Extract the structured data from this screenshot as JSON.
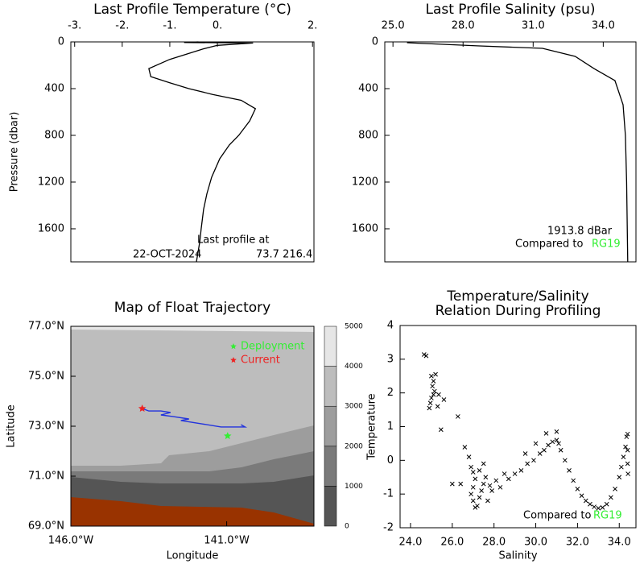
{
  "chart_data": [
    {
      "type": "profile",
      "title": "Last Profile Temperature (°C)",
      "ylabel": "Pressure (dbar)",
      "x_axis_position": "top",
      "color": "#000000",
      "xlim": [
        -3.08,
        2.03
      ],
      "xticks": [
        {
          "value": -3,
          "label": "-3."
        },
        {
          "value": -2,
          "label": "-2."
        },
        {
          "value": -1,
          "label": "-1."
        },
        {
          "value": 0,
          "label": "0."
        },
        {
          "value": 2,
          "label": "2."
        }
      ],
      "ylim": [
        1883,
        0
      ],
      "yticks": [
        0,
        400,
        800,
        1200,
        1600
      ],
      "x": [
        -0.4,
        -0.7,
        0.75,
        0.0,
        -0.3,
        -1.0,
        -1.44,
        -1.4,
        -1.0,
        -0.6,
        -0.1,
        0.5,
        0.8,
        0.68,
        0.45,
        0.25,
        0.05,
        -0.12,
        -0.22,
        -0.29,
        -0.34,
        -0.37,
        -0.44
      ],
      "y": [
        0,
        5,
        10,
        30,
        60,
        150,
        228,
        297,
        350,
        400,
        450,
        500,
        572,
        676,
        800,
        883,
        1000,
        1159,
        1300,
        1434,
        1600,
        1710,
        1883
      ],
      "annotations": [
        {
          "text": "Last profile at"
        },
        {
          "text": "22-OCT-2024"
        },
        {
          "text": "73.7 216.4"
        }
      ]
    },
    {
      "type": "profile",
      "title": "Last Profile Salinity (psu)",
      "x_axis_position": "top",
      "color": "#000000",
      "xlim": [
        24.65,
        35.4
      ],
      "xticks": [
        {
          "value": 25,
          "label": "25.0"
        },
        {
          "value": 28,
          "label": "28.0"
        },
        {
          "value": 31,
          "label": "31.0"
        },
        {
          "value": 34,
          "label": "34.0"
        }
      ],
      "ylim": [
        1883,
        0
      ],
      "yticks": [
        0,
        400,
        800,
        1200,
        1600
      ],
      "x": [
        25.6,
        28.6,
        31.4,
        32.8,
        33.6,
        34.5,
        34.85,
        34.95,
        35.0,
        35.05
      ],
      "y": [
        7,
        34,
        55,
        124,
        228,
        331,
        538,
        800,
        1200,
        1883
      ],
      "annotations": [
        {
          "text": "1913.8 dBar"
        },
        {
          "text": "Compared to"
        },
        {
          "text": "RG19",
          "color": "#33ee33"
        }
      ]
    },
    {
      "type": "map",
      "title": "Map of Float Trajectory",
      "xlabel": "Longitude",
      "ylabel": "Latitude",
      "xlim": [
        -146,
        -138.2
      ],
      "xticks": [
        {
          "value": -146,
          "label": "146.0°W"
        },
        {
          "value": -141,
          "label": "141.0°W"
        }
      ],
      "ylim": [
        69,
        77
      ],
      "yticks": [
        {
          "value": 77,
          "label": "77.0°N"
        },
        {
          "value": 75,
          "label": "75.0°N"
        },
        {
          "value": 73,
          "label": "73.0°N"
        },
        {
          "value": 71,
          "label": "71.0°N"
        },
        {
          "value": 69,
          "label": "69.0°N"
        }
      ],
      "trajectory": {
        "color": "#2233dd",
        "lon": [
          -143.71,
          -143.5,
          -143.11,
          -142.8,
          -143.11,
          -142.73,
          -142.21,
          -142.47,
          -141.82,
          -141.18,
          -140.41,
          -140.54
        ],
        "lat": [
          73.71,
          73.61,
          73.61,
          73.55,
          73.45,
          73.39,
          73.29,
          73.23,
          73.1,
          72.97,
          72.97,
          73.06
        ]
      },
      "markers": [
        {
          "name": "Deployment",
          "color": "#33ee33",
          "lon": -140.97,
          "lat": 72.61
        },
        {
          "name": "Current",
          "color": "#ee2222",
          "lon": -143.71,
          "lat": 73.71
        }
      ],
      "colorbar": {
        "ticks": [
          0,
          1000,
          2000,
          3000,
          4000,
          5000
        ],
        "colors": [
          "#555555",
          "#7a7a7a",
          "#9d9d9d",
          "#bdbdbd",
          "#e6e6e6"
        ]
      }
    },
    {
      "type": "scatter",
      "title": [
        "Temperature/Salinity",
        "Relation During Profiling"
      ],
      "xlabel": "Salinity",
      "ylabel": "Temperature",
      "color": "#000000",
      "xlim": [
        23.5,
        34.8
      ],
      "xticks": [
        {
          "value": 24,
          "label": "24.0"
        },
        {
          "value": 26,
          "label": "26.0"
        },
        {
          "value": 28,
          "label": "28.0"
        },
        {
          "value": 30,
          "label": "30.0"
        },
        {
          "value": 32,
          "label": "32.0"
        },
        {
          "value": 34,
          "label": "34.0"
        }
      ],
      "ylim": [
        -2,
        4
      ],
      "yticks": [
        4,
        3,
        2,
        1,
        0,
        -1,
        -2
      ],
      "x": [
        24.65,
        24.75,
        25.0,
        25.1,
        25.05,
        25.2,
        25.15,
        24.95,
        24.9,
        25.0,
        25.35,
        25.6,
        25.1,
        26.27,
        25.46,
        25.3,
        26.6,
        26.8,
        26.9,
        27.0,
        27.1,
        27.0,
        26.9,
        27.0,
        27.1,
        27.2,
        27.3,
        27.4,
        27.5,
        27.6,
        27.8,
        27.9,
        28.1,
        28.3,
        28.5,
        28.7,
        26.4,
        26.0,
        27.7,
        27.3,
        27.5,
        29.0,
        29.3,
        29.6,
        29.9,
        30.2,
        30.4,
        30.6,
        30.8,
        31.0,
        31.1,
        31.2,
        31.4,
        31.6,
        31.8,
        32.0,
        32.2,
        32.4,
        32.6,
        32.8,
        33.0,
        33.2,
        33.4,
        33.6,
        33.8,
        34.0,
        34.1,
        34.2,
        34.3,
        34.35,
        34.4,
        34.4,
        34.4,
        34.42,
        30.0,
        30.5,
        29.5,
        31.0
      ],
      "y": [
        3.14,
        3.1,
        2.5,
        2.35,
        2.2,
        2.55,
        2.05,
        1.7,
        1.55,
        1.85,
        1.95,
        1.8,
        1.95,
        1.3,
        0.91,
        1.6,
        0.39,
        0.1,
        -0.2,
        -0.35,
        -0.55,
        -0.8,
        -1.0,
        -1.2,
        -1.4,
        -1.35,
        -1.1,
        -0.9,
        -0.7,
        -0.5,
        -0.75,
        -0.9,
        -0.6,
        -0.8,
        -0.4,
        -0.55,
        -0.7,
        -0.7,
        -1.2,
        -0.3,
        -0.1,
        -0.4,
        -0.3,
        -0.1,
        0.0,
        0.2,
        0.3,
        0.45,
        0.55,
        0.6,
        0.5,
        0.3,
        0.0,
        -0.3,
        -0.6,
        -0.85,
        -1.05,
        -1.2,
        -1.3,
        -1.38,
        -1.42,
        -1.4,
        -1.3,
        -1.1,
        -0.85,
        -0.5,
        -0.2,
        0.1,
        0.4,
        0.7,
        0.78,
        0.3,
        -0.1,
        -0.4,
        0.5,
        0.8,
        0.2,
        0.85
      ],
      "annotations": [
        {
          "text": "Compared to"
        },
        {
          "text": "RG19",
          "color": "#33ee33"
        }
      ]
    }
  ]
}
